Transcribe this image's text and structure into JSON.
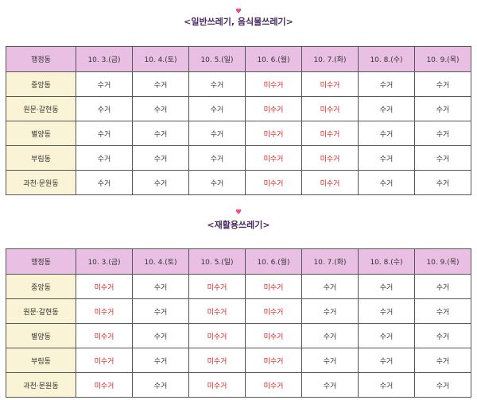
{
  "colors": {
    "header_bg": "#e9bfe3",
    "dong_bg": "#fbf3d6",
    "missed_text": "#e02020",
    "title_text": "#4a2a63",
    "heart": "#e8508a"
  },
  "icons": {
    "heart": "heart-icon"
  },
  "sections": [
    {
      "title": "<일반쓰레기, 음식물쓰레기>",
      "heart": "♥",
      "header": [
        "행정동",
        "10. 3.(금)",
        "10. 4.(토)",
        "10. 5.(일)",
        "10. 6.(월)",
        "10. 7.(화)",
        "10. 8.(수)",
        "10. 9.(목)"
      ],
      "rows": [
        [
          "중앙동",
          "수거",
          "수거",
          "수거",
          "미수거",
          "미수거",
          "수거",
          "수거"
        ],
        [
          "원문·갈현동",
          "수거",
          "수거",
          "수거",
          "미수거",
          "미수거",
          "수거",
          "수거"
        ],
        [
          "별양동",
          "수거",
          "수거",
          "수거",
          "미수거",
          "미수거",
          "수거",
          "수거"
        ],
        [
          "부림동",
          "수거",
          "수거",
          "수거",
          "미수거",
          "미수거",
          "수거",
          "수거"
        ],
        [
          "과천·문원동",
          "수거",
          "수거",
          "수거",
          "미수거",
          "미수거",
          "수거",
          "수거"
        ]
      ]
    },
    {
      "title": "<재활용쓰레기>",
      "heart": "♥",
      "header": [
        "행정동",
        "10. 3.(금)",
        "10. 4.(토)",
        "10. 5.(일)",
        "10. 6.(월)",
        "10. 7.(화)",
        "10. 8.(수)",
        "10. 9.(목)"
      ],
      "rows": [
        [
          "중앙동",
          "미수거",
          "수거",
          "미수거",
          "미수거",
          "수거",
          "수거",
          "수거"
        ],
        [
          "원문·갈현동",
          "미수거",
          "수거",
          "미수거",
          "미수거",
          "수거",
          "수거",
          "수거"
        ],
        [
          "별양동",
          "미수거",
          "수거",
          "미수거",
          "미수거",
          "수거",
          "수거",
          "수거"
        ],
        [
          "부림동",
          "미수거",
          "수거",
          "미수거",
          "미수거",
          "수거",
          "수거",
          "수거"
        ],
        [
          "과천·문원동",
          "미수거",
          "수거",
          "미수거",
          "미수거",
          "수거",
          "수거",
          "수거"
        ]
      ]
    }
  ]
}
